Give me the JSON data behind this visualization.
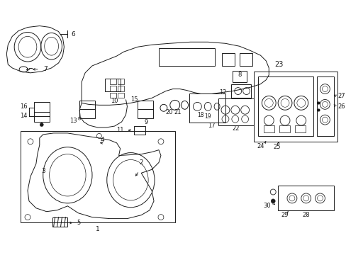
{
  "bg_color": "#ffffff",
  "fg_color": "#1a1a1a",
  "fig_width": 4.89,
  "fig_height": 3.6,
  "dpi": 100,
  "lw": 0.7
}
